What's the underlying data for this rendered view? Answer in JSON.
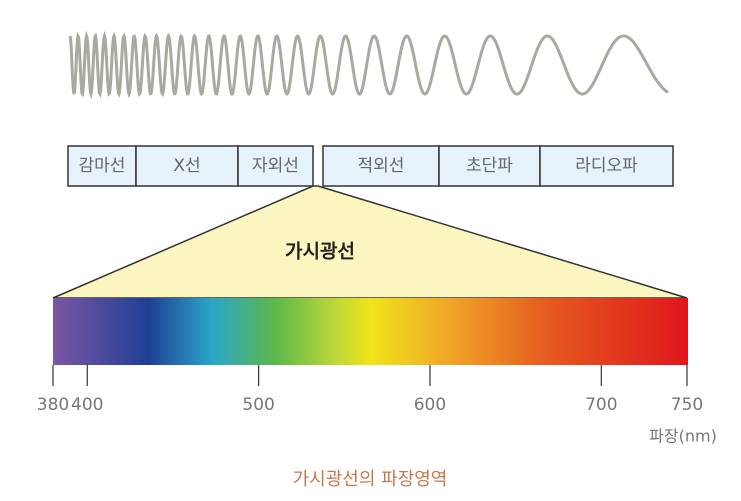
{
  "bands": [
    "감마선",
    "X선",
    "자외선",
    "적외선",
    "초단파",
    "라디오파"
  ],
  "visible_label": "가시광선",
  "axis": {
    "xlim": [
      380,
      750
    ],
    "xticks": [
      380,
      400,
      500,
      600,
      700,
      750
    ],
    "unit_label": "파장(nm)"
  },
  "caption": "가시광선의 파장영역"
}
